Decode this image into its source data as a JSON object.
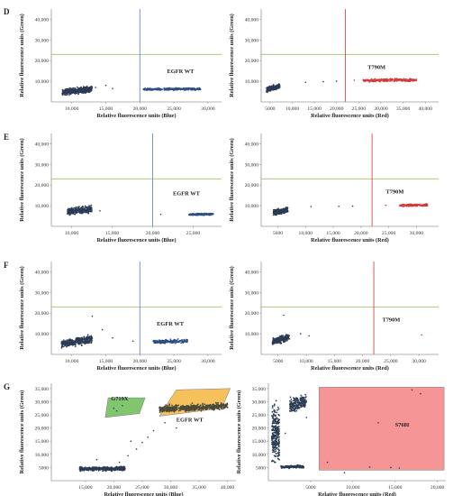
{
  "figure_panels": [
    "D",
    "E",
    "F",
    "G"
  ],
  "chart_data": [
    {
      "type": "scatter",
      "panel": "D",
      "title": "",
      "xlabel": "Relative fluorescence units (Blue)",
      "ylabel": "Relative fluorescence units (Green)",
      "xlim": [
        7000,
        32000
      ],
      "ylim": [
        0,
        45000
      ],
      "xticks": [
        "10,000",
        "15,000",
        "20,000",
        "25,000",
        "30,000"
      ],
      "xtick_values": [
        10000,
        15000,
        20000,
        25000,
        30000
      ],
      "yticks": [
        "10,000",
        "20,000",
        "30,000",
        "40,000"
      ],
      "ytick_values": [
        10000,
        20000,
        30000,
        40000
      ],
      "threshold_x": 20000,
      "threshold_y": 23000,
      "threshold_x_color": "#6a8ac8",
      "threshold_y_color": "#9cc466",
      "annotations": [
        {
          "text": "EGFR WT",
          "x": 24000,
          "y": 14000
        }
      ],
      "clusters": [
        {
          "x0": 8600,
          "x1": 13000,
          "y0": 3500,
          "y1": 7500,
          "color": "#2c3b55",
          "n": 420,
          "slope": 0.4
        },
        {
          "x0": 20500,
          "x1": 29000,
          "y0": 5400,
          "y1": 6900,
          "color": "#2d4f86",
          "n": 300,
          "slope": 0.15
        }
      ],
      "outliers": [
        [
          13500,
          7000,
          "#2c3b55"
        ],
        [
          15000,
          8000,
          "#2c3b55"
        ],
        [
          16000,
          6500,
          "#2c3b55"
        ]
      ]
    },
    {
      "type": "scatter",
      "panel": "D",
      "title": "",
      "xlabel": "Relative fluorescence units (Red)",
      "ylabel": "Relative fluorescence units (Green)",
      "xlim": [
        3000,
        43000
      ],
      "ylim": [
        0,
        45000
      ],
      "xticks": [
        "5000",
        "10,000",
        "15,000",
        "20,000",
        "25,000",
        "30,000",
        "35,000",
        "40,000"
      ],
      "xtick_values": [
        5000,
        10000,
        15000,
        20000,
        25000,
        30000,
        35000,
        40000
      ],
      "yticks": [
        "10,000",
        "20,000",
        "30,000",
        "40,000"
      ],
      "ytick_values": [
        10000,
        20000,
        30000,
        40000
      ],
      "threshold_x": 22000,
      "threshold_y": 23000,
      "threshold_x_color": "#d94a4a",
      "threshold_y_color": "#9cc466",
      "annotations": [
        {
          "text": "T790M",
          "x": 27000,
          "y": 16000
        }
      ],
      "clusters": [
        {
          "x0": 4200,
          "x1": 7200,
          "y0": 5000,
          "y1": 8500,
          "color": "#2c3b55",
          "n": 260,
          "slope": 0.5
        },
        {
          "x0": 26000,
          "x1": 38000,
          "y0": 9500,
          "y1": 11500,
          "color": "#d43a3a",
          "n": 240,
          "slope": 0.15
        }
      ],
      "outliers": [
        [
          13000,
          9500,
          "#2c3b55"
        ],
        [
          17000,
          9800,
          "#2c3b55"
        ],
        [
          20000,
          10000,
          "#2c3b55"
        ],
        [
          24000,
          10500,
          "#d43a3a"
        ]
      ]
    },
    {
      "type": "scatter",
      "panel": "E",
      "title": "",
      "xlabel": "Relative fluorescence units (Blue)",
      "ylabel": "Relative fluorescence units (Green)",
      "xlim": [
        7500,
        28500
      ],
      "ylim": [
        0,
        45000
      ],
      "xticks": [
        "10,000",
        "15,000",
        "20,000",
        "25,000"
      ],
      "xtick_values": [
        10000,
        15000,
        20000,
        25000
      ],
      "yticks": [
        "10,000",
        "20,000",
        "30,000",
        "40,000"
      ],
      "ytick_values": [
        10000,
        20000,
        30000,
        40000
      ],
      "threshold_x": 20000,
      "threshold_y": 23000,
      "threshold_x_color": "#6a8ac8",
      "threshold_y_color": "#9cc466",
      "annotations": [
        {
          "text": "EGFR WT",
          "x": 22500,
          "y": 15000
        }
      ],
      "clusters": [
        {
          "x0": 9500,
          "x1": 12500,
          "y0": 5500,
          "y1": 10000,
          "color": "#2c3b55",
          "n": 360,
          "slope": 0.3
        },
        {
          "x0": 24500,
          "x1": 27500,
          "y0": 5200,
          "y1": 6500,
          "color": "#2d4f86",
          "n": 160,
          "slope": 0.1
        }
      ],
      "outliers": [
        [
          13500,
          7500,
          "#2c3b55"
        ],
        [
          21000,
          5800,
          "#2d4f86"
        ]
      ]
    },
    {
      "type": "scatter",
      "panel": "E",
      "title": "",
      "xlabel": "Relative fluorescence units (Red)",
      "ylabel": "Relative fluorescence units (Green)",
      "xlim": [
        2000,
        34000
      ],
      "ylim": [
        0,
        45000
      ],
      "xticks": [
        "5000",
        "10,000",
        "15,000",
        "20,000",
        "25,000",
        "30,000"
      ],
      "xtick_values": [
        5000,
        10000,
        15000,
        20000,
        25000,
        30000
      ],
      "yticks": [
        "10,000",
        "20,000",
        "30,000",
        "40,000"
      ],
      "ytick_values": [
        10000,
        20000,
        30000,
        40000
      ],
      "threshold_x": 22000,
      "threshold_y": 23000,
      "threshold_x_color": "#d94a4a",
      "threshold_y_color": "#9cc466",
      "annotations": [
        {
          "text": "T790M",
          "x": 24500,
          "y": 16000
        }
      ],
      "clusters": [
        {
          "x0": 4200,
          "x1": 6800,
          "y0": 5500,
          "y1": 9000,
          "color": "#2c3b55",
          "n": 260,
          "slope": 0.4
        },
        {
          "x0": 27000,
          "x1": 32000,
          "y0": 9500,
          "y1": 11000,
          "color": "#d43a3a",
          "n": 160,
          "slope": 0.15
        }
      ],
      "outliers": [
        [
          11000,
          9600,
          "#2c3b55"
        ],
        [
          16000,
          9700,
          "#2c3b55"
        ],
        [
          18500,
          9800,
          "#2c3b55"
        ],
        [
          24500,
          10200,
          "#d43a3a"
        ]
      ]
    },
    {
      "type": "scatter",
      "panel": "F",
      "title": "",
      "xlabel": "Relative fluorescence units (Blue)",
      "ylabel": "Relative fluorescence units (Green)",
      "xlim": [
        7000,
        32000
      ],
      "ylim": [
        0,
        45000
      ],
      "xticks": [
        "10,000",
        "15,000",
        "20,000",
        "25,000",
        "30,000"
      ],
      "xtick_values": [
        10000,
        15000,
        20000,
        25000,
        30000
      ],
      "yticks": [
        "10,000",
        "20,000",
        "30,000",
        "40,000"
      ],
      "ytick_values": [
        10000,
        20000,
        30000,
        40000
      ],
      "threshold_x": 20000,
      "threshold_y": 23000,
      "threshold_x_color": "#6a8ac8",
      "threshold_y_color": "#9cc466",
      "annotations": [
        {
          "text": "EGFR WT",
          "x": 22500,
          "y": 14000
        }
      ],
      "clusters": [
        {
          "x0": 8500,
          "x1": 13000,
          "y0": 3500,
          "y1": 9000,
          "color": "#2c3b55",
          "n": 360,
          "slope": 0.5
        },
        {
          "x0": 22000,
          "x1": 27000,
          "y0": 5000,
          "y1": 7500,
          "color": "#2d4f86",
          "n": 200,
          "slope": 0.2
        }
      ],
      "outliers": [
        [
          13000,
          18500,
          "#2c3b55"
        ],
        [
          14500,
          12000,
          "#2c3b55"
        ],
        [
          16000,
          8000,
          "#2c3b55"
        ],
        [
          19000,
          6500,
          "#2c3b55"
        ],
        [
          26500,
          6000,
          "#2d4f86"
        ]
      ]
    },
    {
      "type": "scatter",
      "panel": "F",
      "title": "",
      "xlabel": "Relative fluorescence units (Red)",
      "ylabel": "Relative fluorescence units (Green)",
      "xlim": [
        2000,
        33500
      ],
      "ylim": [
        0,
        45000
      ],
      "xticks": [
        "5000",
        "10,000",
        "15,000",
        "20,000",
        "25,000",
        "30,000"
      ],
      "xtick_values": [
        5000,
        10000,
        15000,
        20000,
        25000,
        30000
      ],
      "yticks": [
        "10,000",
        "20,000",
        "30,000",
        "40,000"
      ],
      "ytick_values": [
        10000,
        20000,
        30000,
        40000
      ],
      "threshold_x": 22000,
      "threshold_y": 23000,
      "threshold_x_color": "#d94a4a",
      "threshold_y_color": "#9cc466",
      "annotations": [
        {
          "text": "T790M",
          "x": 23500,
          "y": 16000
        }
      ],
      "clusters": [
        {
          "x0": 4000,
          "x1": 7000,
          "y0": 5000,
          "y1": 9500,
          "color": "#2c3b55",
          "n": 240,
          "slope": 0.6
        }
      ],
      "outliers": [
        [
          6000,
          19000,
          "#2c3b55"
        ],
        [
          9000,
          10000,
          "#2c3b55"
        ],
        [
          10500,
          9000,
          "#2c3b55"
        ],
        [
          30500,
          9500,
          "#d43a3a"
        ]
      ]
    },
    {
      "type": "scatter",
      "panel": "G",
      "title": "",
      "xlabel": "Relative fluorescence units (Blue)",
      "ylabel": "Relative fluorescence units (Green)",
      "xlim": [
        9000,
        41500
      ],
      "ylim": [
        0,
        37000
      ],
      "xticks": [
        "15,000",
        "20,000",
        "25,000",
        "30,000",
        "35,000",
        "40,000"
      ],
      "xtick_values": [
        15000,
        20000,
        25000,
        30000,
        35000,
        40000
      ],
      "yticks": [
        "5000",
        "10,000",
        "15,000",
        "20,000",
        "25,000",
        "30,000",
        "35,000"
      ],
      "ytick_values": [
        5000,
        10000,
        15000,
        20000,
        25000,
        30000,
        35000
      ],
      "regions": [
        {
          "label": "G719X",
          "color": "#62b84a",
          "points": [
            [
              18500,
              24000
            ],
            [
              24500,
              25500
            ],
            [
              25500,
              31500
            ],
            [
              19000,
              31500
            ]
          ]
        },
        {
          "label": "EGFR WT",
          "color": "#f2b134",
          "points": [
            [
              28000,
              24500
            ],
            [
              39000,
              27500
            ],
            [
              40500,
              35000
            ],
            [
              31000,
              34500
            ]
          ]
        }
      ],
      "annotations": [
        {
          "text": "G719X",
          "x": 19500,
          "y": 30500
        },
        {
          "text": "EGFR WT",
          "x": 31000,
          "y": 22500
        }
      ],
      "clusters": [
        {
          "x0": 14000,
          "x1": 22000,
          "y0": 3500,
          "y1": 5500,
          "color": "#2c3b55",
          "n": 420,
          "slope": 0.08
        },
        {
          "x0": 28000,
          "x1": 40000,
          "y0": 26000,
          "y1": 29500,
          "color": "#4a4a3a",
          "n": 520,
          "slope": 0.35
        }
      ],
      "outliers": [
        [
          21000,
          7000,
          "#2c3b55"
        ],
        [
          22500,
          9500,
          "#2c3b55"
        ],
        [
          24000,
          12000,
          "#2c3b55"
        ],
        [
          25000,
          14500,
          "#2c3b55"
        ],
        [
          26000,
          16500,
          "#2c3b55"
        ],
        [
          27000,
          19000,
          "#2c3b55"
        ],
        [
          23000,
          15000,
          "#2c3b55"
        ],
        [
          20000,
          27500,
          "#2c3b55"
        ],
        [
          21500,
          28500,
          "#2c3b55"
        ],
        [
          20500,
          26500,
          "#2c3b55"
        ],
        [
          29000,
          22000,
          "#2c3b55"
        ],
        [
          31000,
          20000,
          "#2c3b55"
        ],
        [
          17000,
          8000,
          "#2c3b55"
        ]
      ]
    },
    {
      "type": "scatter",
      "panel": "G",
      "title": "",
      "xlabel": "Relative fluorescence units (Red)",
      "ylabel": "Relative fluorescence units (Green)",
      "xlim": [
        0,
        21000
      ],
      "ylim": [
        0,
        37000
      ],
      "xticks": [
        "5000",
        "10,000",
        "15,000",
        "20,000"
      ],
      "xtick_values": [
        5000,
        10000,
        15000,
        20000
      ],
      "yticks": [
        "5000",
        "10,000",
        "15,000",
        "20,000",
        "25,000",
        "30,000",
        "35,000"
      ],
      "ytick_values": [
        5000,
        10000,
        15000,
        20000,
        25000,
        30000,
        35000
      ],
      "regions": [
        {
          "label": "S768I",
          "color": "#f27a7a",
          "points": [
            [
              6000,
              4000
            ],
            [
              20800,
              4000
            ],
            [
              20800,
              35500
            ],
            [
              6000,
              35500
            ]
          ]
        }
      ],
      "annotations": [
        {
          "text": "S768I",
          "x": 15000,
          "y": 20500
        }
      ],
      "clusters": [
        {
          "x0": 400,
          "x1": 1300,
          "y0": 3500,
          "y1": 33000,
          "color": "#2c3b55",
          "n": 260,
          "slope": 0
        },
        {
          "x0": 2500,
          "x1": 4500,
          "y0": 26000,
          "y1": 33000,
          "color": "#2c3b55",
          "n": 200,
          "slope": 0.3
        },
        {
          "x0": 1500,
          "x1": 4200,
          "y0": 4500,
          "y1": 6000,
          "color": "#2c3b55",
          "n": 150,
          "slope": 0.1
        }
      ],
      "outliers": [
        [
          4500,
          24000,
          "#2c3b55"
        ],
        [
          2000,
          18000,
          "#2c3b55"
        ],
        [
          7000,
          7000,
          "#2c3b55"
        ],
        [
          9000,
          3000,
          "#2c3b55"
        ],
        [
          12000,
          5200,
          "#2c3b55"
        ],
        [
          14500,
          5000,
          "#2c3b55"
        ],
        [
          15500,
          4800,
          "#2c3b55"
        ],
        [
          17000,
          34500,
          "#2c3b55"
        ],
        [
          18000,
          33000,
          "#2c3b55"
        ],
        [
          13000,
          22000,
          "#2c3b55"
        ]
      ]
    }
  ]
}
